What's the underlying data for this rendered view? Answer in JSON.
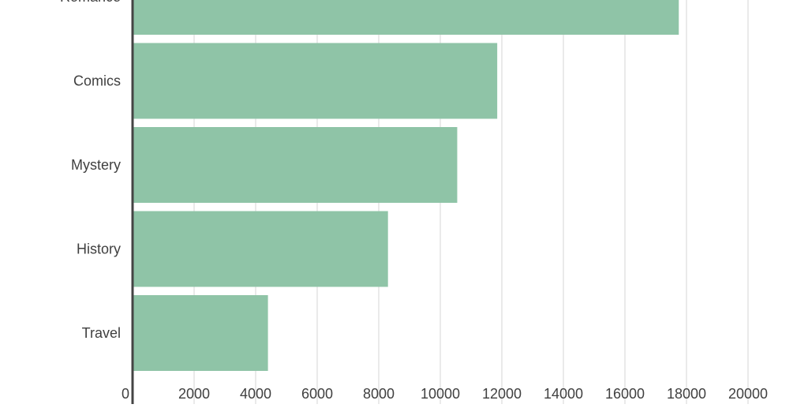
{
  "chart_data": {
    "type": "bar",
    "orientation": "horizontal",
    "categories": [
      "Romance",
      "Comics",
      "Mystery",
      "History",
      "Travel"
    ],
    "series": [
      {
        "values": [
          17750,
          11850,
          10550,
          8300,
          4400
        ]
      }
    ],
    "xlim": [
      0,
      20000
    ],
    "x_ticks": [
      0,
      2000,
      4000,
      6000,
      8000,
      10000,
      12000,
      14000,
      16000,
      18000,
      20000
    ],
    "grid": true,
    "legend": "none",
    "bar_color": "#8fc4a7",
    "grid_color": "#dddddd",
    "axis_color": "#444444",
    "text_color": "#3f3f3f"
  }
}
